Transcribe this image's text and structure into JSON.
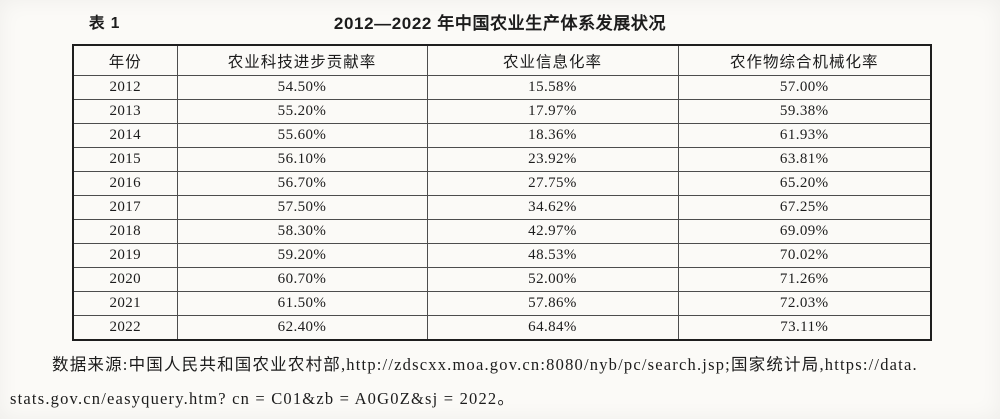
{
  "header": {
    "table_label": "表 1",
    "title": "2012—2022 年中国农业生产体系发展状况"
  },
  "table": {
    "columns": [
      "年份",
      "农业科技进步贡献率",
      "农业信息化率",
      "农作物综合机械化率"
    ],
    "rows": [
      [
        "2012",
        "54.50%",
        "15.58%",
        "57.00%"
      ],
      [
        "2013",
        "55.20%",
        "17.97%",
        "59.38%"
      ],
      [
        "2014",
        "55.60%",
        "18.36%",
        "61.93%"
      ],
      [
        "2015",
        "56.10%",
        "23.92%",
        "63.81%"
      ],
      [
        "2016",
        "56.70%",
        "27.75%",
        "65.20%"
      ],
      [
        "2017",
        "57.50%",
        "34.62%",
        "67.25%"
      ],
      [
        "2018",
        "58.30%",
        "42.97%",
        "69.09%"
      ],
      [
        "2019",
        "59.20%",
        "48.53%",
        "70.02%"
      ],
      [
        "2020",
        "60.70%",
        "52.00%",
        "71.26%"
      ],
      [
        "2021",
        "61.50%",
        "57.86%",
        "72.03%"
      ],
      [
        "2022",
        "62.40%",
        "64.84%",
        "73.11%"
      ]
    ]
  },
  "source_note": {
    "line1": "数据来源:中国人民共和国农业农村部,http://zdscxx.moa.gov.cn:8080/nyb/pc/search.jsp;国家统计局,https://data.",
    "line2": "stats.gov.cn/easyquery.htm? cn = C01&zb = A0G0Z&sj = 2022。"
  },
  "colors": {
    "page_background": "#fbfaf7",
    "text": "#1c1c1c",
    "table_border_outer": "#1e1e1e",
    "table_border_inner": "#4d4d4d"
  }
}
